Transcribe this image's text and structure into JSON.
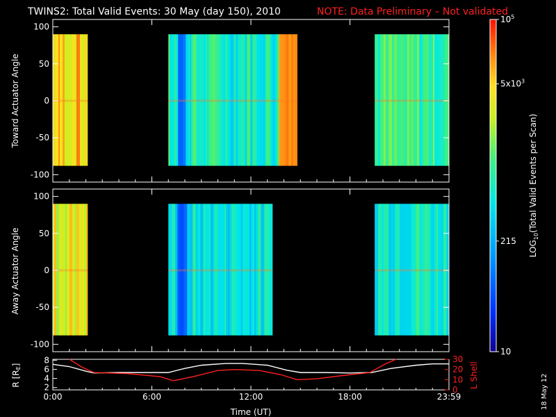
{
  "title_main": "TWINS2: Total Valid Events: 30 May (day 150), 2010",
  "title_note": "NOTE: Data Preliminary – Not validated",
  "date_stamp": "18 May 12",
  "colors": {
    "background": "#000000",
    "axis": "#ffffff",
    "note": "#ff2020",
    "r_line": "#ffffff",
    "lshell_line": "#ff2020"
  },
  "chart_data": [
    {
      "type": "heatmap",
      "name": "Toward Actuator Angle",
      "ylabel": "Toward Actuator Angle",
      "ylim": [
        -110,
        110
      ],
      "yticks": [
        "100",
        "50",
        "0",
        "-50",
        "-100"
      ],
      "xlim": [
        0,
        24
      ],
      "xticks": [
        "0:00",
        "6:00",
        "12:00",
        "18:00",
        "23:59"
      ],
      "angle_range": [
        -88,
        90
      ],
      "segments": [
        {
          "start": 0.0,
          "end": 2.1,
          "level": 0.8
        },
        {
          "start": 7.0,
          "end": 14.8,
          "level": 0.5
        },
        {
          "start": 19.5,
          "end": 24.0,
          "level": 0.55
        }
      ]
    },
    {
      "type": "heatmap",
      "name": "Away Actuator Angle",
      "ylabel": "Away Actuator Angle",
      "ylim": [
        -110,
        110
      ],
      "yticks": [
        "100",
        "50",
        "0",
        "-50",
        "-100"
      ],
      "xlim": [
        0,
        24
      ],
      "xticks": [
        "0:00",
        "6:00",
        "12:00",
        "18:00",
        "23:59"
      ],
      "angle_range": [
        -88,
        90
      ],
      "segments": [
        {
          "start": 0.0,
          "end": 2.1,
          "level": 0.75
        },
        {
          "start": 7.0,
          "end": 13.3,
          "level": 0.45
        },
        {
          "start": 19.5,
          "end": 24.0,
          "level": 0.5
        }
      ]
    },
    {
      "type": "line",
      "name": "Orbit",
      "ylabel_left": "R [R",
      "ylabel_left_sub": "E",
      "ylabel_left_end": "]",
      "ylabel_right": "L Shell",
      "xlabel": "Time (UT)",
      "xlim": [
        0,
        24
      ],
      "xticks": [
        "0:00",
        "6:00",
        "12:00",
        "18:00",
        "23:59"
      ],
      "yticks_left": [
        "8",
        "6",
        "4",
        "2"
      ],
      "yticks_right": [
        "30",
        "20",
        "10",
        "0"
      ],
      "ylim_left": [
        1.5,
        8.2
      ],
      "ylim_right": [
        0,
        30
      ],
      "series": [
        {
          "name": "R",
          "axis": "left",
          "x": [
            0,
            1,
            2,
            2.5,
            4,
            5.5,
            7,
            8,
            9,
            10.5,
            11.5,
            13,
            14.2,
            15,
            16.5,
            18,
            19.3,
            20.5,
            22,
            23,
            24
          ],
          "y": [
            7.1,
            6.6,
            5.6,
            5.2,
            5.3,
            5.3,
            5.3,
            6.2,
            6.9,
            7.3,
            7.3,
            6.9,
            5.8,
            5.3,
            5.3,
            5.2,
            5.3,
            6.2,
            6.9,
            7.2,
            7.2
          ]
        },
        {
          "name": "L Shell",
          "axis": "right",
          "x": [
            1.0,
            1.8,
            2.5,
            4.5,
            6.5,
            7.3,
            8.5,
            10,
            11,
            12.5,
            13.8,
            14.8,
            16,
            17.5,
            19.2,
            20.2,
            20.8
          ],
          "y": [
            30,
            22,
            17,
            16,
            13,
            9,
            13,
            19,
            20,
            19,
            15,
            10,
            11,
            14,
            17,
            26,
            30
          ]
        }
      ]
    }
  ],
  "colorbar": {
    "label_pre": "LOG",
    "label_sub": "10",
    "label_post": "(Total Valid Events per Scan)",
    "ticks": [
      {
        "value": 0.0,
        "base": "10",
        "sup": ""
      },
      {
        "value": 0.333,
        "base": "215",
        "sup": ""
      },
      {
        "value": 0.806,
        "base": "5x10",
        "sup": "3"
      },
      {
        "value": 1.0,
        "base": "10",
        "sup": "5"
      }
    ]
  }
}
